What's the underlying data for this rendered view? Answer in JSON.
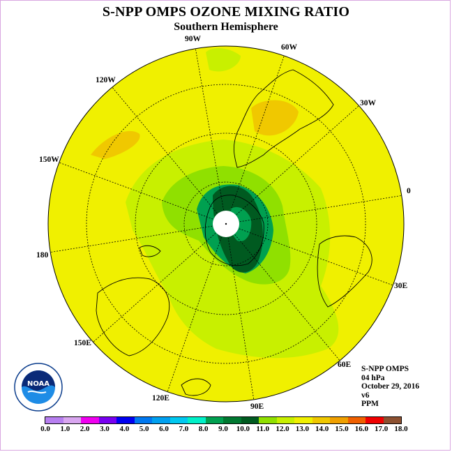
{
  "title": "S-NPP OMPS OZONE MIXING RATIO",
  "subtitle": "Southern Hemisphere",
  "longitude_labels": [
    "90W",
    "60W",
    "30W",
    "0",
    "30E",
    "60E",
    "90E",
    "120E",
    "150E",
    "180",
    "150W",
    "120W"
  ],
  "info": {
    "instrument": "S-NPP OMPS",
    "level": "04 hPa",
    "date": "October 29, 2016",
    "version": "v6",
    "units": "PPM"
  },
  "logo_text": "NOAA",
  "colorbar": {
    "ticks": [
      "0.0",
      "1.0",
      "2.0",
      "3.0",
      "4.0",
      "5.0",
      "6.0",
      "7.0",
      "8.0",
      "9.0",
      "10.0",
      "11.0",
      "12.0",
      "13.0",
      "14.0",
      "15.0",
      "16.0",
      "17.0",
      "18.0"
    ],
    "colors": [
      "#b77ff0",
      "#d9a6f0",
      "#f000f0",
      "#7800f0",
      "#0000f0",
      "#0078f0",
      "#00a0f0",
      "#00c8f0",
      "#00f0c8",
      "#00a050",
      "#007830",
      "#005a20",
      "#90e000",
      "#c8f000",
      "#f0f000",
      "#f0c800",
      "#f0a000",
      "#f06000",
      "#f00000",
      "#8c5030"
    ]
  },
  "colors": {
    "background_field": "#f0f000",
    "low_ozone": "#005a20",
    "mid_ozone": "#00a050",
    "light_green": "#90e000",
    "yellow_green": "#c8f000",
    "orange": "#f0c800"
  }
}
